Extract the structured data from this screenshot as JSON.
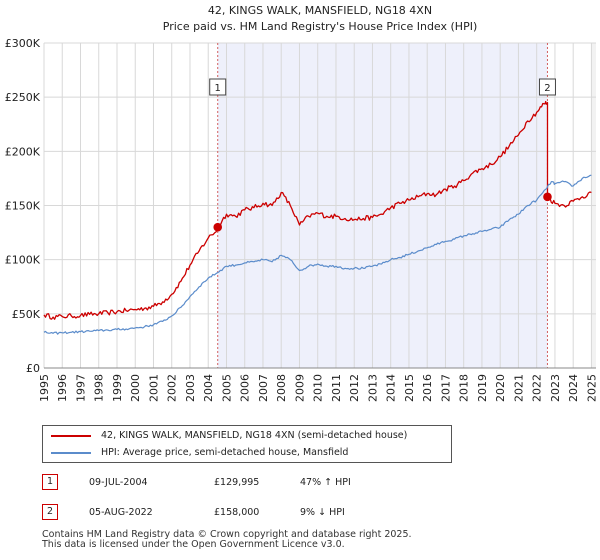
{
  "chart_data": {
    "type": "line",
    "title": "42, KINGS WALK, MANSFIELD, NG18 4XN",
    "subtitle": "Price paid vs. HM Land Registry's House Price Index (HPI)",
    "xlabel": "",
    "ylabel": "",
    "xlim": [
      1995.0,
      2025.25
    ],
    "ylim": [
      0,
      300000
    ],
    "x_ticks": [
      "1995",
      "1996",
      "1997",
      "1998",
      "1999",
      "2000",
      "2001",
      "2002",
      "2003",
      "2004",
      "2005",
      "2006",
      "2007",
      "2008",
      "2009",
      "2010",
      "2011",
      "2012",
      "2013",
      "2014",
      "2015",
      "2016",
      "2017",
      "2018",
      "2019",
      "2020",
      "2021",
      "2022",
      "2023",
      "2024",
      "2025"
    ],
    "y_ticks": [
      {
        "value": 0,
        "label": "£0"
      },
      {
        "value": 50000,
        "label": "£50K"
      },
      {
        "value": 100000,
        "label": "£100K"
      },
      {
        "value": 150000,
        "label": "£150K"
      },
      {
        "value": 200000,
        "label": "£200K"
      },
      {
        "value": 250000,
        "label": "£250K"
      },
      {
        "value": 300000,
        "label": "£300K"
      }
    ],
    "grid": true,
    "series": [
      {
        "name": "42, KINGS WALK, MANSFIELD, NG18 4XN (semi-detached house)",
        "color": "#cc0000",
        "x": [
          1995.0,
          1995.5,
          1996.0,
          1996.5,
          1997.0,
          1997.5,
          1998.0,
          1998.5,
          1999.0,
          1999.5,
          2000.0,
          2000.5,
          2001.0,
          2001.5,
          2002.0,
          2002.5,
          2003.0,
          2003.5,
          2004.0,
          2004.52,
          2004.52,
          2005.0,
          2005.5,
          2006.0,
          2006.5,
          2007.0,
          2007.5,
          2008.0,
          2008.5,
          2009.0,
          2009.5,
          2010.0,
          2010.5,
          2011.0,
          2011.5,
          2012.0,
          2012.5,
          2013.0,
          2013.5,
          2014.0,
          2014.5,
          2015.0,
          2015.5,
          2016.0,
          2016.5,
          2017.0,
          2017.5,
          2018.0,
          2018.5,
          2019.0,
          2019.5,
          2020.0,
          2020.5,
          2021.0,
          2021.5,
          2022.0,
          2022.4,
          2022.59,
          2022.59,
          2023.0,
          2023.5,
          2024.0,
          2024.5,
          2025.0
        ],
        "values": [
          49000,
          47000,
          47500,
          48000,
          48500,
          49500,
          50000,
          51000,
          52000,
          53000,
          54000,
          55000,
          57000,
          61000,
          68000,
          80000,
          95000,
          108000,
          120000,
          128000,
          129995,
          142000,
          140000,
          146000,
          148000,
          152000,
          150000,
          162000,
          150000,
          132000,
          140000,
          143000,
          140000,
          140000,
          138000,
          137000,
          138000,
          139000,
          142000,
          148000,
          152000,
          155000,
          158000,
          161000,
          160000,
          165000,
          168000,
          173000,
          180000,
          184000,
          188000,
          195000,
          205000,
          215000,
          228000,
          236000,
          244000,
          245000,
          158000,
          152000,
          150000,
          154000,
          158000,
          162000
        ]
      },
      {
        "name": "HPI: Average price, semi-detached house, Mansfield",
        "color": "#5b8ccb",
        "x": [
          1995.0,
          1995.5,
          1996.0,
          1996.5,
          1997.0,
          1997.5,
          1998.0,
          1998.5,
          1999.0,
          1999.5,
          2000.0,
          2000.5,
          2001.0,
          2001.5,
          2002.0,
          2002.5,
          2003.0,
          2003.5,
          2004.0,
          2004.5,
          2005.0,
          2005.5,
          2006.0,
          2006.5,
          2007.0,
          2007.5,
          2008.0,
          2008.5,
          2009.0,
          2009.5,
          2010.0,
          2010.5,
          2011.0,
          2011.5,
          2012.0,
          2012.5,
          2013.0,
          2013.5,
          2014.0,
          2014.5,
          2015.0,
          2015.5,
          2016.0,
          2016.5,
          2017.0,
          2017.5,
          2018.0,
          2018.5,
          2019.0,
          2019.5,
          2020.0,
          2020.5,
          2021.0,
          2021.5,
          2022.0,
          2022.5,
          2022.8,
          2023.0,
          2023.5,
          2024.0,
          2024.5,
          2025.0
        ],
        "values": [
          33000,
          32000,
          32500,
          33000,
          33500,
          34000,
          34500,
          35000,
          35500,
          36000,
          37000,
          38000,
          40000,
          43000,
          48000,
          56000,
          66000,
          75000,
          83000,
          88000,
          94000,
          95000,
          97000,
          98000,
          100000,
          98000,
          104000,
          100000,
          90000,
          94000,
          96000,
          94000,
          94000,
          92000,
          92000,
          92000,
          94000,
          96000,
          100000,
          102000,
          105000,
          108000,
          111000,
          114000,
          117000,
          119000,
          122000,
          124000,
          126000,
          128000,
          130000,
          137000,
          142000,
          150000,
          155000,
          165000,
          172000,
          170000,
          172000,
          168000,
          175000,
          178000
        ]
      }
    ],
    "annotations": [
      {
        "label": "1",
        "x": 2004.52,
        "y": 129995
      },
      {
        "label": "2",
        "x": 2022.59,
        "y": 158000
      }
    ],
    "shaded_ranges": [
      [
        2004.52,
        2022.59
      ]
    ]
  },
  "legend": {
    "property": "42, KINGS WALK, MANSFIELD, NG18 4XN (semi-detached house)",
    "hpi": "HPI: Average price, semi-detached house, Mansfield"
  },
  "transactions": [
    {
      "num": "1",
      "date": "09-JUL-2004",
      "price": "£129,995",
      "hpi": "47% ↑ HPI"
    },
    {
      "num": "2",
      "date": "05-AUG-2022",
      "price": "£158,000",
      "hpi": "9% ↓ HPI"
    }
  ],
  "footer": {
    "line1": "Contains HM Land Registry data © Crown copyright and database right 2025.",
    "line2": "This data is licensed under the Open Government Licence v3.0."
  }
}
